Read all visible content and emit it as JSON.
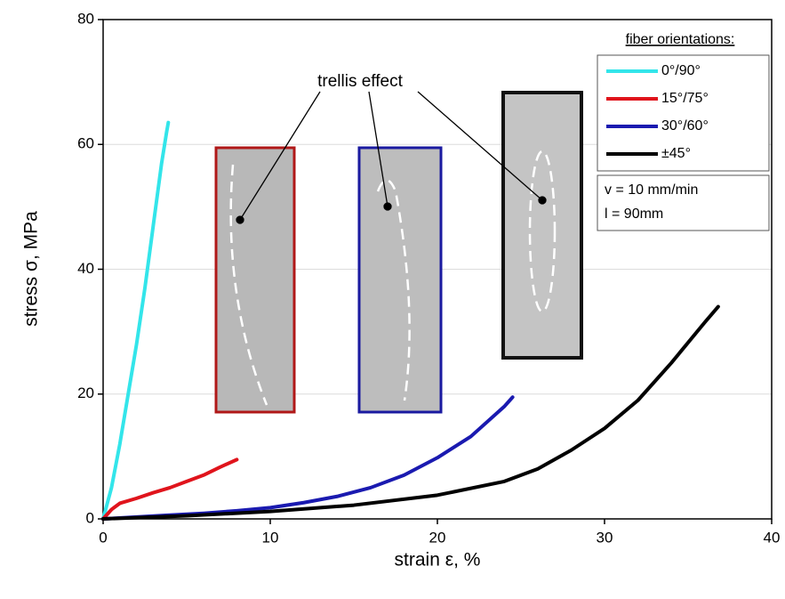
{
  "chart_data": {
    "type": "line",
    "x_label": "strain ε, %",
    "y_label": "stress σ, MPa",
    "xlim": [
      0,
      40
    ],
    "ylim": [
      0,
      80
    ],
    "xticks": [
      0,
      10,
      20,
      30,
      40
    ],
    "yticks": [
      0,
      20,
      40,
      60,
      80
    ],
    "grid": true,
    "legend_position": "upper right",
    "legend_title": "fiber orientations:",
    "annotation": "trellis effect",
    "test_conditions": [
      "v = 10 mm/min",
      "l = 90mm"
    ],
    "series": [
      {
        "name": "0°/90°",
        "color": "#33e5ea",
        "x": [
          0,
          0.5,
          1,
          1.5,
          2,
          2.5,
          3,
          3.5,
          3.8,
          3.9
        ],
        "values": [
          0,
          5,
          12,
          20,
          28,
          37,
          47,
          57,
          62,
          63.5
        ]
      },
      {
        "name": "15°/75°",
        "color": "#e0141c",
        "x": [
          0,
          0.5,
          1,
          2,
          3,
          4,
          5,
          6,
          7,
          8
        ],
        "values": [
          0,
          1.5,
          2.5,
          3.3,
          4.2,
          5,
          6,
          7,
          8.3,
          9.5
        ]
      },
      {
        "name": "30°/60°",
        "color": "#1a1ab0",
        "x": [
          0,
          2,
          4,
          6,
          8,
          10,
          12,
          14,
          16,
          18,
          20,
          22,
          24,
          24.5
        ],
        "values": [
          0,
          0.3,
          0.6,
          0.9,
          1.3,
          1.8,
          2.6,
          3.6,
          5,
          7,
          9.8,
          13.2,
          18,
          19.5
        ]
      },
      {
        "name": "±45°",
        "color": "#000000",
        "x": [
          0,
          5,
          10,
          15,
          20,
          24,
          26,
          28,
          30,
          32,
          34,
          36,
          36.8
        ],
        "values": [
          0,
          0.5,
          1.2,
          2.2,
          3.8,
          6,
          8,
          11,
          14.5,
          19,
          25,
          31.5,
          34
        ]
      }
    ]
  }
}
